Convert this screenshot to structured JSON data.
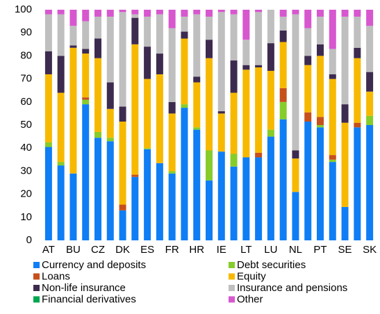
{
  "chart_data": {
    "type": "stacked-bar",
    "categories": [
      "AT",
      null,
      "BU",
      null,
      "CZ",
      null,
      "DK",
      null,
      "ES",
      null,
      "FR",
      null,
      "HR",
      null,
      "IE",
      null,
      "LT",
      null,
      "LU",
      null,
      "NL",
      null,
      "PT",
      null,
      "SE",
      null,
      "SK"
    ],
    "series": [
      {
        "name": "Currency and deposits",
        "color": "#0f7ef5",
        "values": [
          40.5,
          32.5,
          29,
          59,
          44.5,
          43,
          13,
          27.5,
          39.5,
          33.5,
          29,
          57.5,
          48,
          26,
          38.5,
          32,
          36,
          36,
          45,
          52.5,
          21,
          51.5,
          49,
          34,
          14.5,
          49,
          50
        ]
      },
      {
        "name": "Debt securities",
        "color": "#86cc2b",
        "values": [
          2,
          1.5,
          0,
          2,
          2.5,
          1.5,
          0,
          0,
          0.5,
          0,
          1,
          1.5,
          1,
          13,
          0,
          5.5,
          0,
          0,
          3,
          7.5,
          0,
          0,
          1,
          1,
          0,
          0,
          4
        ]
      },
      {
        "name": "Loans",
        "color": "#c6501b",
        "values": [
          0,
          0,
          0,
          1,
          0,
          0,
          2.5,
          1,
          0,
          0,
          0,
          0,
          0,
          0,
          0,
          0,
          0,
          2,
          0,
          6,
          0,
          4,
          3.5,
          2,
          0,
          2,
          0
        ]
      },
      {
        "name": "Equity",
        "color": "#f7b900",
        "values": [
          29.5,
          30,
          54.5,
          19,
          32,
          12.5,
          36,
          56.5,
          30,
          38.5,
          25,
          28.5,
          19.5,
          40,
          16.5,
          26.5,
          38,
          37,
          25.5,
          20,
          14.5,
          20.5,
          26.5,
          33,
          36.5,
          28,
          10.5
        ]
      },
      {
        "name": "Non-life insurance",
        "color": "#3d2b4f",
        "values": [
          10,
          16,
          1,
          2,
          8.5,
          11.5,
          6.5,
          11.5,
          14,
          9,
          5,
          3,
          2.5,
          8,
          1,
          14,
          2,
          1,
          12,
          5,
          3.5,
          4,
          5,
          2,
          8,
          4.5,
          8.5
        ]
      },
      {
        "name": "Insurance and pensions",
        "color": "#bfbfbf",
        "values": [
          16,
          18,
          8.5,
          12,
          9.5,
          28.5,
          41,
          1.5,
          13,
          17,
          32,
          6.5,
          27,
          10,
          43,
          20,
          11,
          23,
          14.5,
          6,
          59,
          12,
          12,
          11,
          38,
          13.5,
          20
        ]
      },
      {
        "name": "Financial derivatives",
        "color": "#00a651",
        "values": [
          0,
          0,
          0,
          0,
          0,
          0,
          0,
          0,
          0,
          0,
          0,
          0,
          0,
          0,
          0,
          0,
          0,
          0,
          0,
          0,
          0,
          0,
          0,
          0,
          0,
          0,
          0
        ]
      },
      {
        "name": "Other",
        "color": "#d757cf",
        "values": [
          2,
          2,
          7,
          5,
          3,
          3,
          1,
          2,
          3,
          2,
          8,
          3,
          2,
          3,
          1,
          2,
          13,
          1,
          0,
          3,
          2,
          8,
          3,
          17,
          3,
          3,
          7
        ]
      }
    ],
    "ylim": [
      0,
      100
    ],
    "yticks": [
      0,
      10,
      20,
      30,
      40,
      50,
      60,
      70,
      80,
      90,
      100
    ],
    "grid": false,
    "legend": "bottom"
  }
}
